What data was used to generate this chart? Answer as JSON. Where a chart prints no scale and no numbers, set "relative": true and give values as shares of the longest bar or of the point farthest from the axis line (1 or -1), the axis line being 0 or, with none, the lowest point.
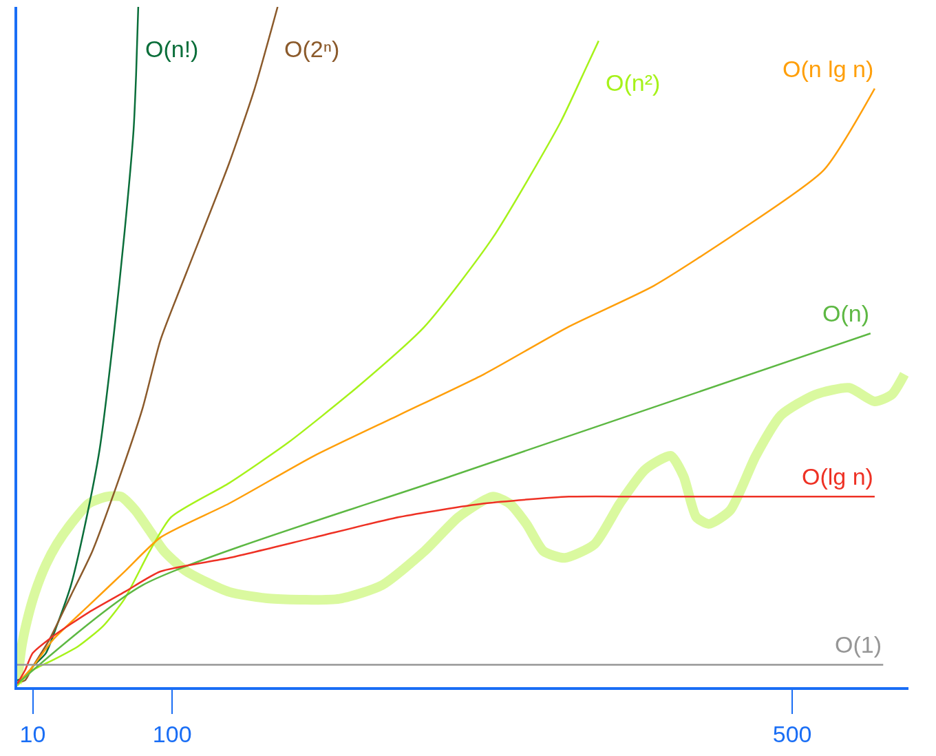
{
  "chart_data": {
    "type": "line",
    "relative": true,
    "legend": false,
    "marker": "none",
    "xlim": [
      0,
      575
    ],
    "xticks": [
      10,
      100,
      500
    ],
    "series": [
      {
        "name": "O(n!)",
        "color": "#0a6e3a",
        "x": [
          0,
          5.1,
          10,
          18.5,
          25.5,
          34.7,
          43.9,
          53.2,
          62.4,
          69.3,
          75.1,
          76.7,
          78.1
        ],
        "values": [
          0.01,
          0.015,
          0.03,
          0.05,
          0.09,
          0.15,
          0.24,
          0.35,
          0.52,
          0.67,
          0.82,
          0.9,
          1.0
        ]
      },
      {
        "name": "O(2ⁿ)",
        "color": "#8b5a2b",
        "x": [
          0,
          5.1,
          10,
          20.8,
          34.7,
          48.5,
          64.7,
          80.9,
          92.4,
          109.3,
          136.7,
          153.2,
          168.0
        ],
        "values": [
          0.007,
          0.01,
          0.03,
          0.07,
          0.135,
          0.2,
          0.3,
          0.41,
          0.51,
          0.61,
          0.77,
          0.88,
          1.0
        ]
      },
      {
        "name": "O(n²)",
        "color": "#a6f21a",
        "x": [
          0,
          10,
          23.2,
          39.3,
          55.5,
          69.3,
          85.5,
          99.3,
          136.7,
          175.1,
          218.9,
          262.8,
          306.6,
          350.4,
          366.9,
          375.1
        ],
        "values": [
          0.002,
          0.025,
          0.04,
          0.06,
          0.09,
          0.13,
          0.2,
          0.25,
          0.3,
          0.36,
          0.44,
          0.53,
          0.66,
          0.83,
          0.91,
          0.95
        ]
      },
      {
        "name": "O(n lg n)",
        "color": "#ff9f0a",
        "x": [
          0,
          10,
          23.2,
          46.2,
          69.3,
          92.4,
          136.7,
          191.5,
          246.3,
          301.1,
          355.9,
          410.7,
          465.5,
          520.3,
          553.2
        ],
        "values": [
          0.005,
          0.03,
          0.07,
          0.12,
          0.17,
          0.22,
          0.27,
          0.34,
          0.4,
          0.46,
          0.53,
          0.59,
          0.67,
          0.76,
          0.88
        ]
      },
      {
        "name": "O(n)",
        "color": "#5db843",
        "x": [
          0,
          80.9,
          279.7,
          550.5
        ],
        "values": [
          0.005,
          0.15,
          0.31,
          0.52
        ]
      },
      {
        "name": "O(lg n)",
        "color": "#ee3124",
        "x": [
          0,
          5.1,
          10,
          23.2,
          46.2,
          69.3,
          92.4,
          136.7,
          191.5,
          246.3,
          301.1,
          355.9,
          410.7,
          465.5,
          553.2
        ],
        "values": [
          0.005,
          0.025,
          0.05,
          0.075,
          0.11,
          0.14,
          0.17,
          0.19,
          0.22,
          0.25,
          0.27,
          0.28,
          0.28,
          0.28,
          0.28
        ]
      },
      {
        "name": "O(1)",
        "color": "#969696",
        "x": [
          0,
          558.7
        ],
        "values": [
          0.033,
          0.033
        ]
      },
      {
        "color": "#d9f99a",
        "x": [
          0,
          2.9,
          6.6,
          11.6,
          18.5,
          25.5,
          34.7,
          46.2,
          57.8,
          67.0,
          76.2,
          85.5,
          94.7,
          109.3,
          136.7,
          164.1,
          208.0,
          235.4,
          262.8,
          284.7,
          306.6,
          317.6,
          328.5,
          339.5,
          353.2,
          372.4,
          388.8,
          405.2,
          421.7,
          429.9,
          438.1,
          446.3,
          460.0,
          476.5,
          492.9,
          514.8,
          536.8,
          553.2,
          564.2,
          572.4
        ],
        "values": [
          0.005,
          0.06,
          0.1,
          0.14,
          0.18,
          0.21,
          0.24,
          0.27,
          0.28,
          0.28,
          0.26,
          0.23,
          0.2,
          0.17,
          0.14,
          0.13,
          0.13,
          0.15,
          0.2,
          0.25,
          0.28,
          0.27,
          0.24,
          0.2,
          0.19,
          0.21,
          0.27,
          0.32,
          0.34,
          0.31,
          0.25,
          0.24,
          0.26,
          0.34,
          0.4,
          0.43,
          0.44,
          0.42,
          0.43,
          0.46
        ]
      }
    ]
  }
}
